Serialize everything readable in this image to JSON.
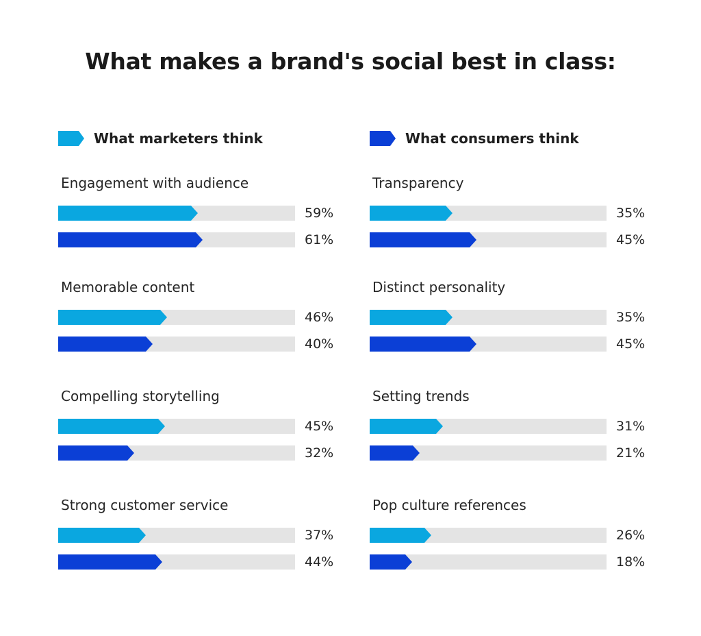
{
  "title": "What makes a brand's social best in class:",
  "colors": {
    "series1": "#0aa7e0",
    "series2": "#0b3fd6",
    "track": "#e4e4e4"
  },
  "legend": {
    "series1_label": "What marketers think",
    "series2_label": "What consumers think"
  },
  "chart_data": [
    {
      "type": "bar",
      "orientation": "horizontal",
      "xlim": [
        0,
        100
      ],
      "panels": [
        {
          "category": "Engagement with audience",
          "values": [
            59,
            61
          ],
          "labels": [
            "59%",
            "61%"
          ]
        },
        {
          "category": "Memorable content",
          "values": [
            46,
            40
          ],
          "labels": [
            "46%",
            "40%"
          ]
        },
        {
          "category": "Compelling storytelling",
          "values": [
            45,
            32
          ],
          "labels": [
            "45%",
            "32%"
          ]
        },
        {
          "category": "Strong customer service",
          "values": [
            37,
            44
          ],
          "labels": [
            "37%",
            "44%"
          ]
        }
      ]
    },
    {
      "type": "bar",
      "orientation": "horizontal",
      "xlim": [
        0,
        100
      ],
      "panels": [
        {
          "category": "Transparency",
          "values": [
            35,
            45
          ],
          "labels": [
            "35%",
            "45%"
          ]
        },
        {
          "category": "Distinct personality",
          "values": [
            35,
            45
          ],
          "labels": [
            "35%",
            "45%"
          ]
        },
        {
          "category": "Setting trends",
          "values": [
            31,
            21
          ],
          "labels": [
            "31%",
            "21%"
          ]
        },
        {
          "category": "Pop culture references",
          "values": [
            26,
            18
          ],
          "labels": [
            "26%",
            "18%"
          ]
        }
      ]
    }
  ]
}
